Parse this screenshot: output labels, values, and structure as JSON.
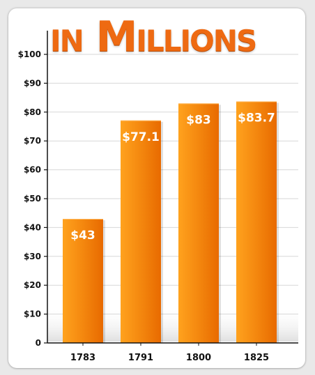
{
  "chart_data": {
    "type": "bar",
    "title": "in Millions",
    "categories": [
      "1783",
      "1791",
      "1800",
      "1825"
    ],
    "values": [
      43,
      77.1,
      83,
      83.7
    ],
    "value_labels": [
      "$43",
      "$77.1",
      "$83",
      "$83.7"
    ],
    "ylim": [
      0,
      100
    ],
    "yticks": [
      0,
      10,
      20,
      30,
      40,
      50,
      60,
      70,
      80,
      90,
      100
    ],
    "ytick_labels": [
      "0",
      "$10",
      "$20",
      "$30",
      "$40",
      "$50",
      "$60",
      "$70",
      "$80",
      "$90",
      "$100"
    ],
    "xlabel": "",
    "ylabel": "",
    "grid": true,
    "bar_color": "#f07c0a",
    "accent_color": "#ee6a12"
  }
}
